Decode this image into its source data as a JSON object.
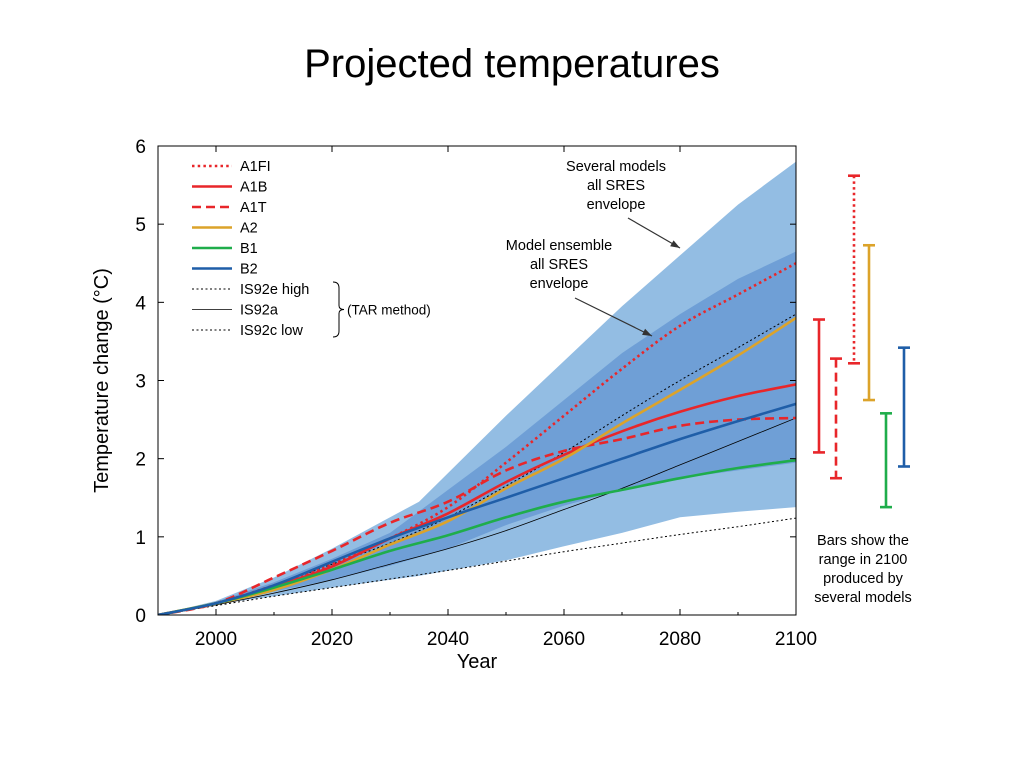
{
  "page_title": "Projected temperatures",
  "chart_data": {
    "type": "line",
    "xlabel": "Year",
    "ylabel": "Temperature change (°C)",
    "xlim": [
      1990,
      2100
    ],
    "ylim": [
      0,
      6
    ],
    "x_ticks": [
      2000,
      2020,
      2040,
      2060,
      2080,
      2100
    ],
    "y_ticks": [
      0,
      1,
      2,
      3,
      4,
      5,
      6
    ],
    "envelopes": [
      {
        "label_lines": [
          "Several models",
          "all SRES",
          "envelope"
        ],
        "color": "#93bde3",
        "x": [
          1990,
          2000,
          2010,
          2020,
          2035,
          2050,
          2060,
          2070,
          2080,
          2090,
          2100
        ],
        "upper": [
          0,
          0.18,
          0.48,
          0.85,
          1.45,
          2.55,
          3.25,
          3.95,
          4.6,
          5.25,
          5.8
        ],
        "lower": [
          0,
          0.14,
          0.24,
          0.35,
          0.5,
          0.7,
          0.88,
          1.05,
          1.25,
          1.32,
          1.38
        ]
      },
      {
        "label_lines": [
          "Model ensemble",
          "all SRES",
          "envelope"
        ],
        "color": "#6f9fd6",
        "x": [
          1990,
          2000,
          2010,
          2020,
          2030,
          2040,
          2050,
          2060,
          2070,
          2080,
          2090,
          2100
        ],
        "upper": [
          0,
          0.17,
          0.42,
          0.72,
          1.05,
          1.6,
          2.15,
          2.75,
          3.35,
          3.85,
          4.3,
          4.65
        ],
        "lower": [
          0,
          0.15,
          0.3,
          0.45,
          0.63,
          0.85,
          1.15,
          1.4,
          1.6,
          1.75,
          1.85,
          1.95
        ]
      }
    ],
    "x": [
      1990,
      2000,
      2010,
      2020,
      2030,
      2040,
      2050,
      2060,
      2070,
      2080,
      2090,
      2100
    ],
    "series": [
      {
        "name": "A1FI",
        "color": "#e8262a",
        "style": "dotted",
        "width": 2.6,
        "values": [
          0,
          0.15,
          0.38,
          0.65,
          0.98,
          1.38,
          1.95,
          2.55,
          3.15,
          3.7,
          4.1,
          4.5
        ]
      },
      {
        "name": "A1B",
        "color": "#e8262a",
        "style": "solid",
        "width": 2.6,
        "values": [
          0,
          0.15,
          0.36,
          0.62,
          0.98,
          1.3,
          1.7,
          2.05,
          2.35,
          2.6,
          2.8,
          2.95
        ]
      },
      {
        "name": "A1T",
        "color": "#e8262a",
        "style": "dashed",
        "width": 2.6,
        "values": [
          0,
          0.15,
          0.48,
          0.82,
          1.18,
          1.45,
          1.85,
          2.1,
          2.25,
          2.42,
          2.5,
          2.52
        ]
      },
      {
        "name": "A2",
        "color": "#dca32a",
        "style": "solid",
        "width": 2.6,
        "values": [
          0,
          0.15,
          0.32,
          0.58,
          0.9,
          1.2,
          1.62,
          2.0,
          2.45,
          2.88,
          3.32,
          3.8
        ]
      },
      {
        "name": "B1",
        "color": "#1fad4b",
        "style": "solid",
        "width": 2.6,
        "values": [
          0,
          0.15,
          0.35,
          0.58,
          0.82,
          1.02,
          1.25,
          1.45,
          1.6,
          1.75,
          1.88,
          1.98
        ]
      },
      {
        "name": "B2",
        "color": "#1f5ea8",
        "style": "solid",
        "width": 2.6,
        "values": [
          0,
          0.15,
          0.38,
          0.68,
          0.98,
          1.25,
          1.5,
          1.75,
          2.0,
          2.25,
          2.48,
          2.7
        ]
      },
      {
        "name": "IS92e high",
        "color": "#000000",
        "style": "dotted-thin",
        "width": 1,
        "values": [
          0,
          0.15,
          0.38,
          0.65,
          0.92,
          1.25,
          1.65,
          2.08,
          2.55,
          3.0,
          3.42,
          3.85
        ]
      },
      {
        "name": "IS92a",
        "color": "#000000",
        "style": "solid",
        "width": 0.8,
        "values": [
          0,
          0.13,
          0.28,
          0.45,
          0.65,
          0.85,
          1.08,
          1.35,
          1.62,
          1.92,
          2.22,
          2.52
        ]
      },
      {
        "name": "IS92c low",
        "color": "#000000",
        "style": "dotted-thin",
        "width": 1,
        "values": [
          0,
          0.12,
          0.24,
          0.35,
          0.46,
          0.57,
          0.69,
          0.81,
          0.92,
          1.03,
          1.13,
          1.24
        ]
      }
    ],
    "legend_bracket_label": "(TAR method)",
    "range_bars_2100": [
      {
        "name": "A1B",
        "color": "#e8262a",
        "style": "solid",
        "min": 2.08,
        "max": 3.78
      },
      {
        "name": "A1T",
        "color": "#e8262a",
        "style": "dashed",
        "min": 1.75,
        "max": 3.28
      },
      {
        "name": "A1FI",
        "color": "#e8262a",
        "style": "dotted",
        "min": 3.22,
        "max": 5.62
      },
      {
        "name": "A2",
        "color": "#dca32a",
        "style": "solid",
        "min": 2.75,
        "max": 4.73
      },
      {
        "name": "B1",
        "color": "#1fad4b",
        "style": "solid",
        "min": 1.38,
        "max": 2.58
      },
      {
        "name": "B2",
        "color": "#1f5ea8",
        "style": "solid",
        "min": 1.9,
        "max": 3.42
      }
    ],
    "note_lines": [
      "Bars show the",
      "range in 2100",
      "produced by",
      "several models"
    ],
    "legend_placement": "top-left",
    "grid": false
  }
}
